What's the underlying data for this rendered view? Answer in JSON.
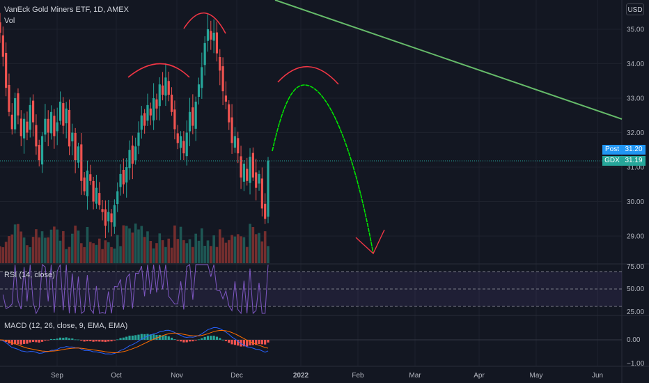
{
  "header": {
    "title": "VanEck Gold Miners ETF, 1D, AMEX",
    "vol_label": "Vol",
    "currency": "USD"
  },
  "price_tags": {
    "post_label": "Post",
    "post_value": "31.20",
    "symbol_label": "GDX",
    "symbol_value": "31.19"
  },
  "panes": {
    "rsi_label": "RSI (14, close)",
    "macd_label": "MACD (12, 26, close, 9, EMA, EMA)"
  },
  "colors": {
    "background": "#131722",
    "up": "#26a69a",
    "down": "#ef5350",
    "rsi_line": "#7e57c2",
    "macd_line": "#2962ff",
    "signal_line": "#ff6d00",
    "trendline": "#66bb6a",
    "arc": "#f23645",
    "projection": "#00e600",
    "last_price_line": "#26a69a"
  },
  "chart_data": [
    {
      "type": "candlestick",
      "title": "VanEck Gold Miners ETF, 1D, AMEX",
      "x_ticks": [
        "Sep",
        "Oct",
        "Nov",
        "Dec",
        "2022",
        "Feb",
        "Mar",
        "Apr",
        "May",
        "Jun"
      ],
      "y_ticks": [
        "35.00",
        "34.00",
        "33.00",
        "32.00",
        "31.00",
        "30.00",
        "29.00"
      ],
      "ylim": [
        28.2,
        35.8
      ],
      "last_price": 31.19,
      "closes": [
        34.9,
        34.2,
        33.3,
        32.6,
        32.1,
        33.0,
        32.5,
        31.9,
        32.4,
        32.0,
        32.8,
        32.3,
        31.6,
        31.2,
        31.9,
        32.4,
        32.0,
        32.6,
        31.9,
        32.3,
        32.9,
        32.2,
        32.7,
        31.6,
        32.0,
        31.2,
        31.6,
        30.6,
        30.3,
        30.9,
        30.6,
        30.0,
        30.4,
        29.9,
        29.7,
        29.3,
        29.7,
        29.4,
        29.9,
        30.3,
        30.8,
        30.5,
        31.0,
        31.5,
        31.1,
        31.6,
        32.0,
        32.5,
        32.2,
        32.8,
        32.5,
        33.0,
        32.7,
        33.4,
        33.1,
        33.6,
        33.1,
        32.6,
        32.1,
        31.7,
        31.9,
        31.4,
        32.0,
        32.6,
        32.2,
        32.9,
        33.4,
        33.9,
        34.6,
        35.0,
        34.7,
        34.9,
        34.3,
        33.8,
        33.2,
        32.9,
        32.3,
        31.7,
        31.9,
        31.4,
        30.7,
        31.1,
        30.6,
        31.3,
        30.7,
        30.4,
        30.8,
        29.8,
        29.5,
        31.19
      ],
      "rsi_levels": [
        70,
        50,
        30
      ],
      "rsi_ticks": [
        "75.00",
        "50.00",
        "25.00"
      ],
      "macd_ticks": [
        "0.00",
        "−1.00"
      ]
    }
  ]
}
